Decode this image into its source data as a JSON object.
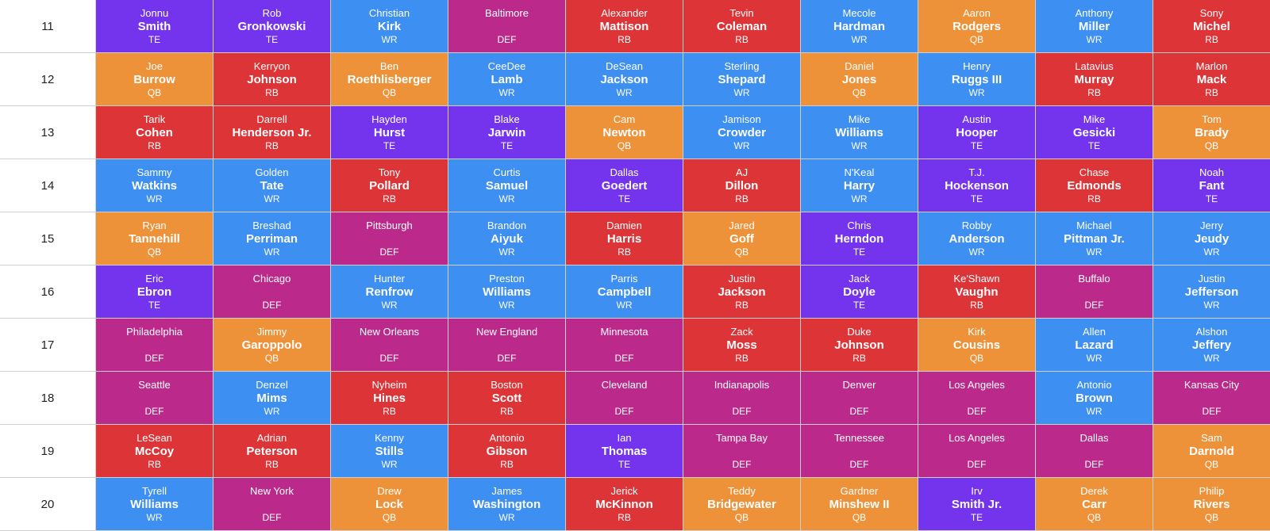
{
  "colors": {
    "QB": "#ee923a",
    "RB": "#dc3437",
    "WR": "#3d8ff1",
    "TE": "#7434ee",
    "DEF": "#bb2a8b"
  },
  "rounds": [
    {
      "round": "11",
      "picks": [
        {
          "first": "Jonnu",
          "last": "Smith",
          "pos": "TE"
        },
        {
          "first": "Rob",
          "last": "Gronkowski",
          "pos": "TE"
        },
        {
          "first": "Christian",
          "last": "Kirk",
          "pos": "WR"
        },
        {
          "first": "Baltimore",
          "last": "",
          "pos": "DEF"
        },
        {
          "first": "Alexander",
          "last": "Mattison",
          "pos": "RB"
        },
        {
          "first": "Tevin",
          "last": "Coleman",
          "pos": "RB"
        },
        {
          "first": "Mecole",
          "last": "Hardman",
          "pos": "WR"
        },
        {
          "first": "Aaron",
          "last": "Rodgers",
          "pos": "QB"
        },
        {
          "first": "Anthony",
          "last": "Miller",
          "pos": "WR"
        },
        {
          "first": "Sony",
          "last": "Michel",
          "pos": "RB"
        }
      ]
    },
    {
      "round": "12",
      "picks": [
        {
          "first": "Joe",
          "last": "Burrow",
          "pos": "QB"
        },
        {
          "first": "Kerryon",
          "last": "Johnson",
          "pos": "RB"
        },
        {
          "first": "Ben",
          "last": "Roethlisberger",
          "pos": "QB"
        },
        {
          "first": "CeeDee",
          "last": "Lamb",
          "pos": "WR"
        },
        {
          "first": "DeSean",
          "last": "Jackson",
          "pos": "WR"
        },
        {
          "first": "Sterling",
          "last": "Shepard",
          "pos": "WR"
        },
        {
          "first": "Daniel",
          "last": "Jones",
          "pos": "QB"
        },
        {
          "first": "Henry",
          "last": "Ruggs III",
          "pos": "WR"
        },
        {
          "first": "Latavius",
          "last": "Murray",
          "pos": "RB"
        },
        {
          "first": "Marlon",
          "last": "Mack",
          "pos": "RB"
        }
      ]
    },
    {
      "round": "13",
      "picks": [
        {
          "first": "Tarik",
          "last": "Cohen",
          "pos": "RB"
        },
        {
          "first": "Darrell",
          "last": "Henderson Jr.",
          "pos": "RB"
        },
        {
          "first": "Hayden",
          "last": "Hurst",
          "pos": "TE"
        },
        {
          "first": "Blake",
          "last": "Jarwin",
          "pos": "TE"
        },
        {
          "first": "Cam",
          "last": "Newton",
          "pos": "QB"
        },
        {
          "first": "Jamison",
          "last": "Crowder",
          "pos": "WR"
        },
        {
          "first": "Mike",
          "last": "Williams",
          "pos": "WR"
        },
        {
          "first": "Austin",
          "last": "Hooper",
          "pos": "TE"
        },
        {
          "first": "Mike",
          "last": "Gesicki",
          "pos": "TE"
        },
        {
          "first": "Tom",
          "last": "Brady",
          "pos": "QB"
        }
      ]
    },
    {
      "round": "14",
      "picks": [
        {
          "first": "Sammy",
          "last": "Watkins",
          "pos": "WR"
        },
        {
          "first": "Golden",
          "last": "Tate",
          "pos": "WR"
        },
        {
          "first": "Tony",
          "last": "Pollard",
          "pos": "RB"
        },
        {
          "first": "Curtis",
          "last": "Samuel",
          "pos": "WR"
        },
        {
          "first": "Dallas",
          "last": "Goedert",
          "pos": "TE"
        },
        {
          "first": "AJ",
          "last": "Dillon",
          "pos": "RB"
        },
        {
          "first": "N'Keal",
          "last": "Harry",
          "pos": "WR"
        },
        {
          "first": "T.J.",
          "last": "Hockenson",
          "pos": "TE"
        },
        {
          "first": "Chase",
          "last": "Edmonds",
          "pos": "RB"
        },
        {
          "first": "Noah",
          "last": "Fant",
          "pos": "TE"
        }
      ]
    },
    {
      "round": "15",
      "picks": [
        {
          "first": "Ryan",
          "last": "Tannehill",
          "pos": "QB"
        },
        {
          "first": "Breshad",
          "last": "Perriman",
          "pos": "WR"
        },
        {
          "first": "Pittsburgh",
          "last": "",
          "pos": "DEF"
        },
        {
          "first": "Brandon",
          "last": "Aiyuk",
          "pos": "WR"
        },
        {
          "first": "Damien",
          "last": "Harris",
          "pos": "RB"
        },
        {
          "first": "Jared",
          "last": "Goff",
          "pos": "QB"
        },
        {
          "first": "Chris",
          "last": "Herndon",
          "pos": "TE"
        },
        {
          "first": "Robby",
          "last": "Anderson",
          "pos": "WR"
        },
        {
          "first": "Michael",
          "last": "Pittman Jr.",
          "pos": "WR"
        },
        {
          "first": "Jerry",
          "last": "Jeudy",
          "pos": "WR"
        }
      ]
    },
    {
      "round": "16",
      "picks": [
        {
          "first": "Eric",
          "last": "Ebron",
          "pos": "TE"
        },
        {
          "first": "Chicago",
          "last": "",
          "pos": "DEF"
        },
        {
          "first": "Hunter",
          "last": "Renfrow",
          "pos": "WR"
        },
        {
          "first": "Preston",
          "last": "Williams",
          "pos": "WR"
        },
        {
          "first": "Parris",
          "last": "Campbell",
          "pos": "WR"
        },
        {
          "first": "Justin",
          "last": "Jackson",
          "pos": "RB"
        },
        {
          "first": "Jack",
          "last": "Doyle",
          "pos": "TE"
        },
        {
          "first": "Ke'Shawn",
          "last": "Vaughn",
          "pos": "RB"
        },
        {
          "first": "Buffalo",
          "last": "",
          "pos": "DEF"
        },
        {
          "first": "Justin",
          "last": "Jefferson",
          "pos": "WR"
        }
      ]
    },
    {
      "round": "17",
      "picks": [
        {
          "first": "Philadelphia",
          "last": "",
          "pos": "DEF"
        },
        {
          "first": "Jimmy",
          "last": "Garoppolo",
          "pos": "QB"
        },
        {
          "first": "New Orleans",
          "last": "",
          "pos": "DEF"
        },
        {
          "first": "New England",
          "last": "",
          "pos": "DEF"
        },
        {
          "first": "Minnesota",
          "last": "",
          "pos": "DEF"
        },
        {
          "first": "Zack",
          "last": "Moss",
          "pos": "RB"
        },
        {
          "first": "Duke",
          "last": "Johnson",
          "pos": "RB"
        },
        {
          "first": "Kirk",
          "last": "Cousins",
          "pos": "QB"
        },
        {
          "first": "Allen",
          "last": "Lazard",
          "pos": "WR"
        },
        {
          "first": "Alshon",
          "last": "Jeffery",
          "pos": "WR"
        }
      ]
    },
    {
      "round": "18",
      "picks": [
        {
          "first": "Seattle",
          "last": "",
          "pos": "DEF"
        },
        {
          "first": "Denzel",
          "last": "Mims",
          "pos": "WR"
        },
        {
          "first": "Nyheim",
          "last": "Hines",
          "pos": "RB"
        },
        {
          "first": "Boston",
          "last": "Scott",
          "pos": "RB"
        },
        {
          "first": "Cleveland",
          "last": "",
          "pos": "DEF"
        },
        {
          "first": "Indianapolis",
          "last": "",
          "pos": "DEF"
        },
        {
          "first": "Denver",
          "last": "",
          "pos": "DEF"
        },
        {
          "first": "Los Angeles",
          "last": "",
          "pos": "DEF"
        },
        {
          "first": "Antonio",
          "last": "Brown",
          "pos": "WR"
        },
        {
          "first": "Kansas City",
          "last": "",
          "pos": "DEF"
        }
      ]
    },
    {
      "round": "19",
      "picks": [
        {
          "first": "LeSean",
          "last": "McCoy",
          "pos": "RB"
        },
        {
          "first": "Adrian",
          "last": "Peterson",
          "pos": "RB"
        },
        {
          "first": "Kenny",
          "last": "Stills",
          "pos": "WR"
        },
        {
          "first": "Antonio",
          "last": "Gibson",
          "pos": "RB"
        },
        {
          "first": "Ian",
          "last": "Thomas",
          "pos": "TE"
        },
        {
          "first": "Tampa Bay",
          "last": "",
          "pos": "DEF"
        },
        {
          "first": "Tennessee",
          "last": "",
          "pos": "DEF"
        },
        {
          "first": "Los Angeles",
          "last": "",
          "pos": "DEF"
        },
        {
          "first": "Dallas",
          "last": "",
          "pos": "DEF"
        },
        {
          "first": "Sam",
          "last": "Darnold",
          "pos": "QB"
        }
      ]
    },
    {
      "round": "20",
      "picks": [
        {
          "first": "Tyrell",
          "last": "Williams",
          "pos": "WR"
        },
        {
          "first": "New York",
          "last": "",
          "pos": "DEF"
        },
        {
          "first": "Drew",
          "last": "Lock",
          "pos": "QB"
        },
        {
          "first": "James",
          "last": "Washington",
          "pos": "WR"
        },
        {
          "first": "Jerick",
          "last": "McKinnon",
          "pos": "RB"
        },
        {
          "first": "Teddy",
          "last": "Bridgewater",
          "pos": "QB"
        },
        {
          "first": "Gardner",
          "last": "Minshew II",
          "pos": "QB"
        },
        {
          "first": "Irv",
          "last": "Smith Jr.",
          "pos": "TE"
        },
        {
          "first": "Derek",
          "last": "Carr",
          "pos": "QB"
        },
        {
          "first": "Philip",
          "last": "Rivers",
          "pos": "QB"
        }
      ]
    }
  ]
}
